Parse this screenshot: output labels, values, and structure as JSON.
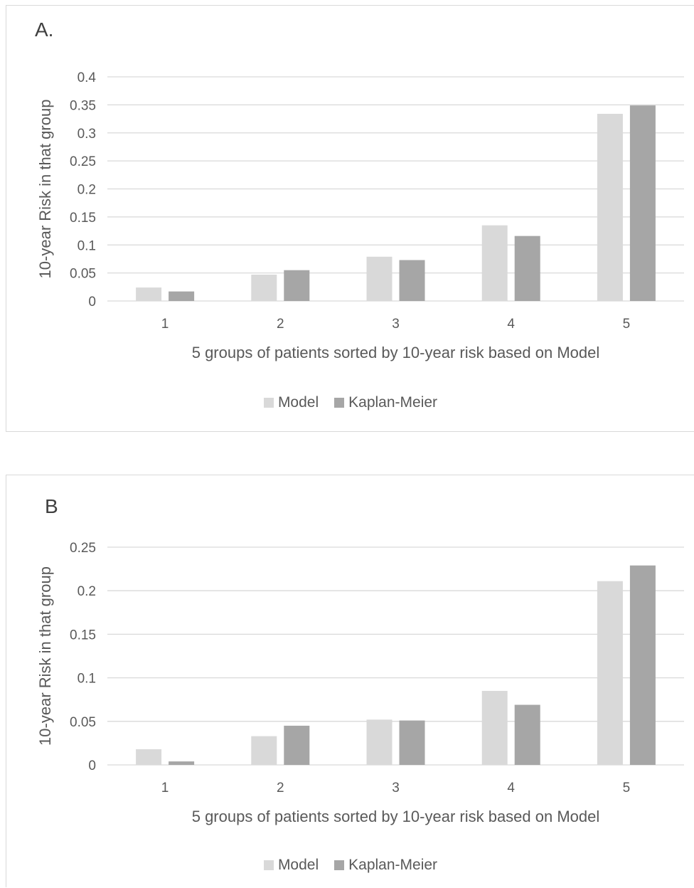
{
  "colors": {
    "model": "#d9d9d9",
    "km": "#a6a6a6",
    "grid": "#d9d9d9",
    "text": "#595959"
  },
  "chart_data": [
    {
      "type": "bar",
      "panel_label": "A.",
      "categories": [
        "1",
        "2",
        "3",
        "4",
        "5"
      ],
      "series": [
        {
          "name": "Model",
          "values": [
            0.024,
            0.047,
            0.079,
            0.135,
            0.334
          ]
        },
        {
          "name": "Kaplan-Meier",
          "values": [
            0.017,
            0.055,
            0.073,
            0.116,
            0.349
          ]
        }
      ],
      "xlabel": "5 groups of patients sorted by 10-year risk based on Model",
      "ylabel": "10-year Risk in that group",
      "ylim": [
        0,
        0.4
      ],
      "yticks": [
        0,
        0.05,
        0.1,
        0.15,
        0.2,
        0.25,
        0.3,
        0.35,
        0.4
      ],
      "ytick_labels": [
        "0",
        "0.05",
        "0.1",
        "0.15",
        "0.2",
        "0.25",
        "0.3",
        "0.35",
        "0.4"
      ],
      "grid": true,
      "legend": "bottom"
    },
    {
      "type": "bar",
      "panel_label": "B",
      "categories": [
        "1",
        "2",
        "3",
        "4",
        "5"
      ],
      "series": [
        {
          "name": "Model",
          "values": [
            0.018,
            0.033,
            0.052,
            0.085,
            0.211
          ]
        },
        {
          "name": "Kaplan-Meier",
          "values": [
            0.004,
            0.045,
            0.051,
            0.069,
            0.229
          ]
        }
      ],
      "xlabel": "5 groups of patients sorted by 10-year risk based on Model",
      "ylabel": "10-year Risk in that group",
      "ylim": [
        0,
        0.25
      ],
      "yticks": [
        0,
        0.05,
        0.1,
        0.15,
        0.2,
        0.25
      ],
      "ytick_labels": [
        "0",
        "0.05",
        "0.1",
        "0.15",
        "0.2",
        "0.25"
      ],
      "grid": true,
      "legend": "bottom"
    }
  ]
}
